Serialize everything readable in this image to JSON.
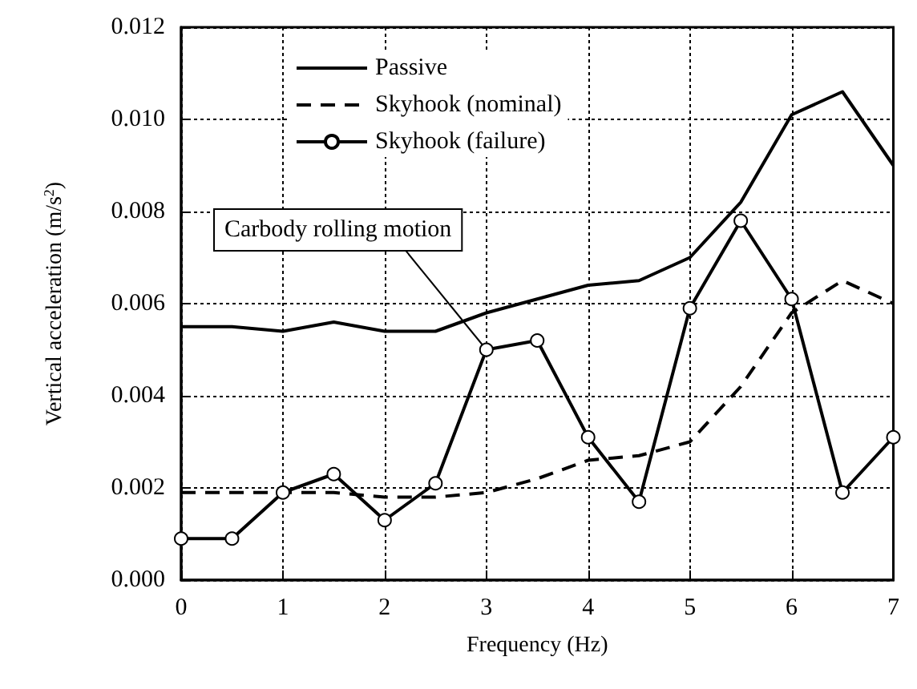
{
  "chart_data": {
    "type": "line",
    "xlabel": "Frequency (Hz)",
    "ylabel": "Vertical acceleration (m/s$^{2}$)",
    "x": [
      0,
      0.5,
      1,
      1.5,
      2,
      2.5,
      3,
      3.5,
      4,
      4.5,
      5,
      5.5,
      6,
      6.5,
      7
    ],
    "series": [
      {
        "name": "Passive",
        "color": "#000000",
        "line_style": "solid",
        "marker": "none",
        "values": [
          0.0055,
          0.0055,
          0.0054,
          0.0056,
          0.0054,
          0.0054,
          0.0058,
          0.0061,
          0.0064,
          0.0065,
          0.007,
          0.0082,
          0.0101,
          0.0106,
          0.009
        ]
      },
      {
        "name": "Skyhook (nominal)",
        "color": "#000000",
        "line_style": "dashed",
        "marker": "none",
        "values": [
          0.0019,
          0.0019,
          0.0019,
          0.0019,
          0.0018,
          0.0018,
          0.0019,
          0.0022,
          0.0026,
          0.0027,
          0.003,
          0.0042,
          0.0058,
          0.0065,
          0.006
        ]
      },
      {
        "name": "Skyhook (failure)",
        "color": "#000000",
        "line_style": "solid",
        "marker": "circle",
        "values": [
          0.0009,
          0.0009,
          0.0019,
          0.0023,
          0.0013,
          0.0021,
          0.005,
          0.0052,
          0.0031,
          0.0017,
          0.0059,
          0.0078,
          0.0061,
          0.0019,
          0.0031
        ]
      }
    ],
    "xlim": [
      0,
      7
    ],
    "xticks": [
      0,
      1,
      2,
      3,
      4,
      5,
      6,
      7
    ],
    "ylim": [
      0,
      0.012
    ],
    "yticks": [
      {
        "value": 0,
        "label": "0.000"
      },
      {
        "value": 0.002,
        "label": "0.002"
      },
      {
        "value": 0.004,
        "label": "0.004"
      },
      {
        "value": 0.006,
        "label": "0.006"
      },
      {
        "value": 0.008,
        "label": "0.008"
      },
      {
        "value": 0.01,
        "label": "0.010"
      },
      {
        "value": 0.012,
        "label": "0.012"
      }
    ],
    "grid": true,
    "legend": "top left",
    "annotations": [
      {
        "text": "Carbody rolling motion",
        "x": 3,
        "y": 0.005
      }
    ]
  }
}
